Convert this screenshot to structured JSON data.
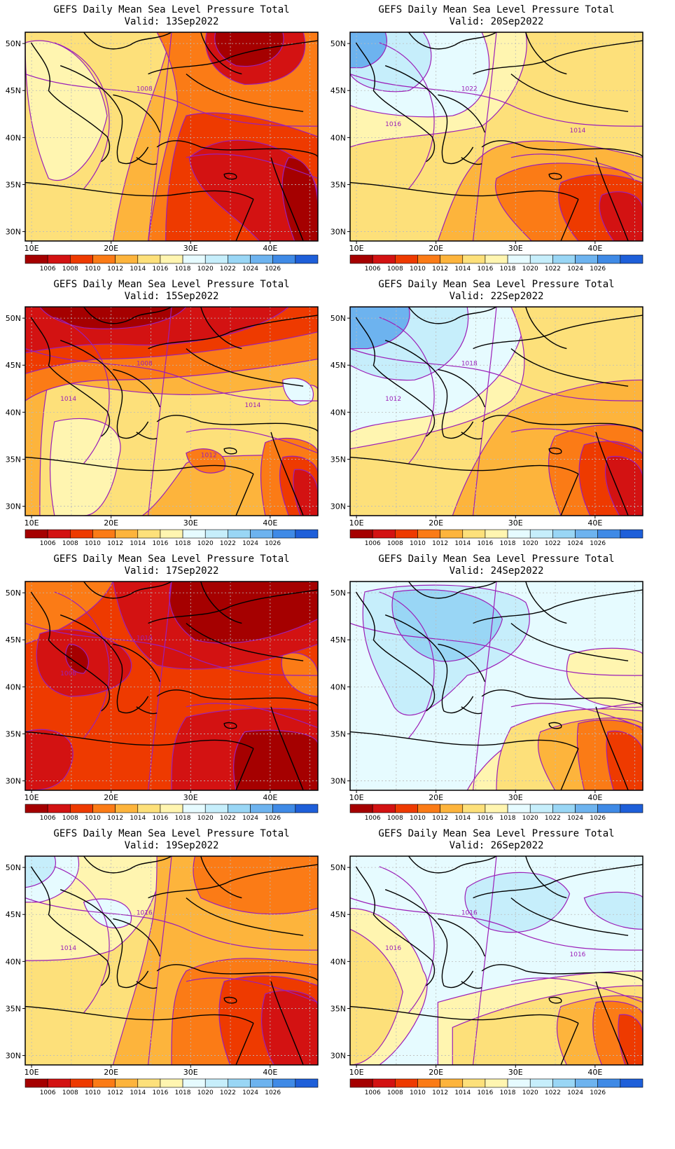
{
  "figure": {
    "title": "GEFS Daily Mean Sea Level Pressure Total",
    "valid_prefix": "Valid:",
    "lon_labels": [
      "10E",
      "20E",
      "30E",
      "40E"
    ],
    "lat_labels": [
      "50N",
      "45N",
      "40N",
      "35N",
      "30N"
    ],
    "colorbar": {
      "labels": [
        "1006",
        "1008",
        "1010",
        "1012",
        "1014",
        "1016",
        "1018",
        "1020",
        "1022",
        "1024",
        "1026"
      ],
      "colors": [
        "#a50000",
        "#d31212",
        "#ee3a00",
        "#fb7b16",
        "#fdb43c",
        "#fde07a",
        "#fff5b0",
        "#e6fbff",
        "#c6eefb",
        "#99d6f5",
        "#6db3ef",
        "#3f8ae6",
        "#1e5fd9"
      ]
    },
    "panels": [
      {
        "name": "panel-13sep",
        "valid": "13Sep2022",
        "isolabels": [
          "1008"
        ]
      },
      {
        "name": "panel-20sep",
        "valid": "20Sep2022",
        "isolabels": [
          "1022",
          "1016",
          "1014"
        ]
      },
      {
        "name": "panel-15sep",
        "valid": "15Sep2022",
        "isolabels": [
          "1008",
          "1014",
          "1014",
          "1012"
        ]
      },
      {
        "name": "panel-22sep",
        "valid": "22Sep2022",
        "isolabels": [
          "1018",
          "1012"
        ]
      },
      {
        "name": "panel-17sep",
        "valid": "17Sep2022",
        "isolabels": [
          "1010",
          "1008"
        ]
      },
      {
        "name": "panel-24sep",
        "valid": "24Sep2022",
        "isolabels": []
      },
      {
        "name": "panel-19sep",
        "valid": "19Sep2022",
        "isolabels": [
          "1016",
          "1014"
        ]
      },
      {
        "name": "panel-26sep",
        "valid": "26Sep2022",
        "isolabels": [
          "1016",
          "1016",
          "1016"
        ]
      }
    ]
  }
}
